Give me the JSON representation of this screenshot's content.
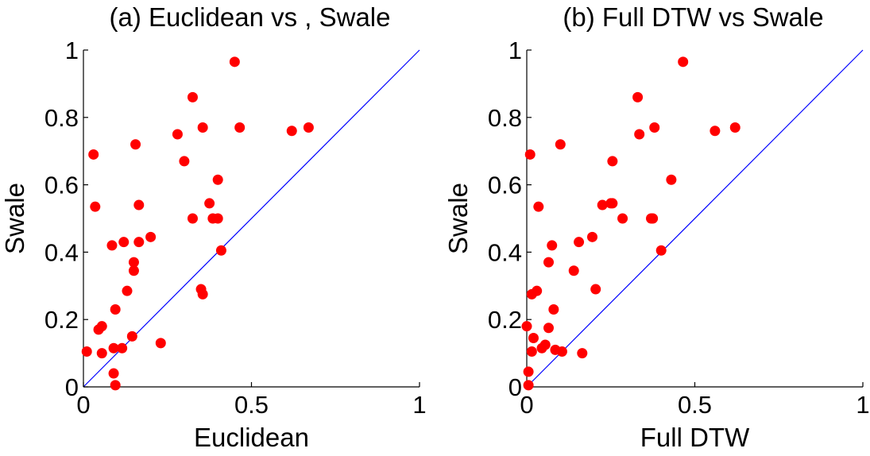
{
  "chart_data": [
    {
      "type": "scatter",
      "title": "(a)  Euclidean  vs , Swale",
      "xlabel": "Euclidean",
      "ylabel": "Swale",
      "xlim": [
        0,
        1
      ],
      "ylim": [
        0,
        1
      ],
      "xticks": [
        "0",
        "0.5",
        "1"
      ],
      "yticks": [
        "0",
        "0.2",
        "0.4",
        "0.6",
        "0.8",
        "1"
      ],
      "grid": false,
      "reference_line": {
        "x": [
          0,
          1
        ],
        "y": [
          0,
          1
        ],
        "color": "#0000ff"
      },
      "marker_color": "#ff0000",
      "series": [
        {
          "x": [
            0.01,
            0.03,
            0.035,
            0.045,
            0.055,
            0.055,
            0.085,
            0.09,
            0.09,
            0.095,
            0.095,
            0.115,
            0.12,
            0.13,
            0.145,
            0.15,
            0.15,
            0.155,
            0.165,
            0.165,
            0.2,
            0.23,
            0.28,
            0.3,
            0.325,
            0.325,
            0.35,
            0.355,
            0.355,
            0.375,
            0.385,
            0.4,
            0.4,
            0.41,
            0.45,
            0.465,
            0.62,
            0.67
          ],
          "y": [
            0.105,
            0.69,
            0.535,
            0.17,
            0.18,
            0.1,
            0.42,
            0.04,
            0.115,
            0.23,
            0.005,
            0.115,
            0.43,
            0.285,
            0.15,
            0.345,
            0.37,
            0.72,
            0.43,
            0.54,
            0.445,
            0.13,
            0.75,
            0.67,
            0.86,
            0.5,
            0.29,
            0.77,
            0.275,
            0.545,
            0.5,
            0.5,
            0.615,
            0.405,
            0.965,
            0.77,
            0.76,
            0.77
          ]
        }
      ]
    },
    {
      "type": "scatter",
      "title": "(b)  Full DTW  vs  Swale",
      "xlabel": "Full DTW",
      "ylabel": "Swale",
      "xlim": [
        0,
        1
      ],
      "ylim": [
        0,
        1
      ],
      "xticks": [
        "0",
        "0.5",
        "1"
      ],
      "yticks": [
        "0",
        "0.2",
        "0.4",
        "0.6",
        "0.8",
        "1"
      ],
      "grid": false,
      "reference_line": {
        "x": [
          0,
          1
        ],
        "y": [
          0,
          1
        ],
        "color": "#0000ff"
      },
      "marker_color": "#ff0000",
      "series": [
        {
          "x": [
            0.0,
            0.005,
            0.005,
            0.01,
            0.015,
            0.015,
            0.02,
            0.03,
            0.035,
            0.045,
            0.055,
            0.065,
            0.065,
            0.075,
            0.08,
            0.085,
            0.1,
            0.105,
            0.14,
            0.155,
            0.165,
            0.195,
            0.205,
            0.225,
            0.25,
            0.255,
            0.285,
            0.33,
            0.335,
            0.37,
            0.375,
            0.38,
            0.4,
            0.43,
            0.465,
            0.56,
            0.62,
            0.255
          ],
          "y": [
            0.18,
            0.045,
            0.005,
            0.69,
            0.275,
            0.105,
            0.145,
            0.285,
            0.535,
            0.115,
            0.125,
            0.37,
            0.175,
            0.42,
            0.23,
            0.11,
            0.72,
            0.105,
            0.345,
            0.43,
            0.1,
            0.445,
            0.29,
            0.54,
            0.545,
            0.67,
            0.5,
            0.86,
            0.75,
            0.5,
            0.5,
            0.77,
            0.405,
            0.615,
            0.965,
            0.76,
            0.77,
            0.545
          ]
        }
      ]
    }
  ]
}
